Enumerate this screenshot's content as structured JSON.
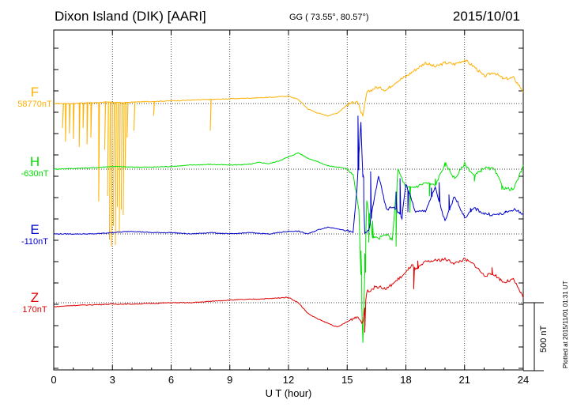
{
  "header": {
    "station": "Dixon Island (DIK)  [AARI]",
    "coords": "GG ( 73.55°,  80.57°)",
    "date": "2015/10/01"
  },
  "plotted_note": "Plotted at 2015/11/01 01:31 UT",
  "scale_label": "500 nT",
  "colors": {
    "F": "#ffb000",
    "H": "#00e000",
    "E": "#0000cc",
    "Z": "#e00000"
  },
  "chart_data": {
    "type": "line",
    "xlabel": "U T (hour)",
    "xlim": [
      0,
      24
    ],
    "xticks": [
      0,
      3,
      6,
      9,
      12,
      15,
      18,
      21,
      24
    ],
    "scale_bar_nT": 500,
    "grid": "dotted",
    "series": [
      {
        "name": "F",
        "baseline_label": "58770nT",
        "baseline_nT": 58770,
        "x": [
          0,
          0.5,
          1,
          1.5,
          2,
          2.5,
          3,
          3.5,
          4,
          5,
          6,
          7,
          8,
          9,
          10,
          11,
          12,
          12.5,
          13,
          13.5,
          14,
          14.5,
          15,
          15.5,
          15.8,
          16,
          16.5,
          17,
          17.5,
          18,
          18.5,
          19,
          19.5,
          20,
          20.5,
          21,
          21.5,
          22,
          22.5,
          23,
          23.5,
          24
        ],
        "y": [
          0,
          0,
          0,
          5,
          5,
          10,
          10,
          5,
          10,
          15,
          20,
          25,
          30,
          35,
          40,
          45,
          55,
          30,
          -40,
          -70,
          -90,
          -70,
          -10,
          20,
          -100,
          80,
          120,
          100,
          160,
          200,
          250,
          300,
          270,
          300,
          290,
          320,
          270,
          200,
          230,
          180,
          190,
          90
        ],
        "spikes": [
          {
            "x": 0.45,
            "y": -180
          },
          {
            "x": 0.6,
            "y": -280
          },
          {
            "x": 0.8,
            "y": -220
          },
          {
            "x": 1.0,
            "y": -260
          },
          {
            "x": 1.3,
            "y": -320
          },
          {
            "x": 1.5,
            "y": -180
          },
          {
            "x": 1.7,
            "y": -300
          },
          {
            "x": 1.9,
            "y": -250
          },
          {
            "x": 2.3,
            "y": -720
          },
          {
            "x": 2.6,
            "y": -340
          },
          {
            "x": 2.75,
            "y": -680
          },
          {
            "x": 2.85,
            "y": -1000
          },
          {
            "x": 2.95,
            "y": -1050
          },
          {
            "x": 3.05,
            "y": -900
          },
          {
            "x": 3.15,
            "y": -1040
          },
          {
            "x": 3.25,
            "y": -760
          },
          {
            "x": 3.35,
            "y": -950
          },
          {
            "x": 3.45,
            "y": -780
          },
          {
            "x": 3.55,
            "y": -820
          },
          {
            "x": 3.65,
            "y": -480
          },
          {
            "x": 3.75,
            "y": -250
          },
          {
            "x": 4.1,
            "y": -200
          },
          {
            "x": 5.1,
            "y": -90
          },
          {
            "x": 8.0,
            "y": -200
          }
        ]
      },
      {
        "name": "H",
        "baseline_label": "-630nT",
        "baseline_nT": -630,
        "x": [
          0,
          1,
          2,
          3,
          4,
          5,
          6,
          7,
          8,
          9,
          10,
          10.5,
          11,
          11.5,
          12,
          12.5,
          13,
          13.5,
          14,
          14.5,
          15,
          15.3,
          15.6,
          15.8,
          16,
          16.3,
          16.6,
          17,
          17.3,
          17.6,
          18,
          18.5,
          19,
          19.5,
          20,
          20.5,
          21,
          21.5,
          22,
          22.5,
          23,
          23.5,
          24
        ],
        "y": [
          0,
          5,
          10,
          20,
          15,
          15,
          20,
          30,
          35,
          30,
          35,
          50,
          40,
          60,
          90,
          120,
          80,
          55,
          25,
          15,
          5,
          -40,
          -300,
          -1270,
          -230,
          -500,
          -510,
          -480,
          -520,
          0,
          -140,
          -130,
          -100,
          -120,
          40,
          -70,
          40,
          -50,
          10,
          0,
          -140,
          -150,
          20
        ],
        "spikes": [
          {
            "x": 15.7,
            "y": -600
          },
          {
            "x": 15.9,
            "y": -620
          },
          {
            "x": 16.1,
            "y": -540
          },
          {
            "x": 16.3,
            "y": -380
          },
          {
            "x": 17.5,
            "y": -570
          },
          {
            "x": 18.2,
            "y": -320
          },
          {
            "x": 19.2,
            "y": -200
          },
          {
            "x": 19.5,
            "y": -70
          },
          {
            "x": 20.0,
            "y": 20
          },
          {
            "x": 21.5,
            "y": -90
          },
          {
            "x": 22.9,
            "y": -150
          }
        ]
      },
      {
        "name": "E",
        "baseline_label": "-110nT",
        "baseline_nT": -110,
        "x": [
          0,
          1,
          2,
          3,
          4,
          5,
          6,
          7,
          8,
          9,
          10,
          11,
          12,
          12.5,
          13,
          13.5,
          14,
          14.5,
          15,
          15.3,
          15.5,
          15.7,
          15.9,
          16.1,
          16.3,
          16.6,
          17,
          17.4,
          17.8,
          18.0,
          18.5,
          19,
          19.5,
          20,
          20.5,
          21,
          21.5,
          22,
          22.5,
          23,
          23.5,
          24
        ],
        "y": [
          0,
          0,
          0,
          10,
          20,
          10,
          10,
          0,
          10,
          0,
          10,
          0,
          20,
          20,
          0,
          30,
          50,
          40,
          20,
          10,
          340,
          820,
          10,
          20,
          190,
          430,
          180,
          200,
          120,
          370,
          160,
          170,
          340,
          90,
          280,
          120,
          190,
          150,
          140,
          150,
          180,
          150
        ],
        "spikes": [
          {
            "x": 15.55,
            "y": 870
          },
          {
            "x": 15.8,
            "y": 440
          },
          {
            "x": 16.2,
            "y": 460
          },
          {
            "x": 17.5,
            "y": 310
          },
          {
            "x": 17.7,
            "y": 410
          },
          {
            "x": 18.1,
            "y": 160
          },
          {
            "x": 19.3,
            "y": 340
          },
          {
            "x": 19.7,
            "y": 380
          },
          {
            "x": 20.2,
            "y": 290
          },
          {
            "x": 21.3,
            "y": 190
          },
          {
            "x": 23.1,
            "y": 160
          }
        ]
      },
      {
        "name": "Z",
        "baseline_label": "170nT",
        "baseline_nT": 170,
        "x": [
          0,
          1,
          2,
          3,
          4,
          5,
          6,
          7,
          8,
          9,
          10,
          11,
          11.5,
          12,
          12.5,
          13,
          13.5,
          14,
          14.5,
          15,
          15.5,
          15.8,
          16,
          16.5,
          17,
          17.5,
          18,
          18.3,
          18.5,
          19,
          19.5,
          20,
          20.5,
          21,
          21.5,
          22,
          22.5,
          23,
          23.5,
          24
        ],
        "y": [
          -30,
          -20,
          -15,
          -10,
          -10,
          -5,
          0,
          0,
          10,
          20,
          25,
          30,
          35,
          40,
          0,
          -80,
          -120,
          -150,
          -180,
          -140,
          -100,
          -150,
          80,
          120,
          100,
          160,
          220,
          280,
          240,
          300,
          310,
          320,
          290,
          320,
          280,
          200,
          210,
          150,
          170,
          40
        ],
        "spikes": [
          {
            "x": 15.9,
            "y": -220
          },
          {
            "x": 18.4,
            "y": 100
          },
          {
            "x": 18.6,
            "y": 310
          },
          {
            "x": 22.4,
            "y": 260
          }
        ]
      }
    ]
  }
}
